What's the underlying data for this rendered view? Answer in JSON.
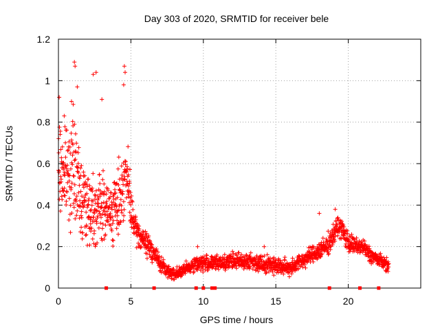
{
  "chart_data": {
    "type": "scatter",
    "title": "Day 303 of 2020, SRMTID for receiver bele",
    "xlabel": "GPS time / hours",
    "ylabel": "SRMTID / TECUs",
    "xlim": [
      0,
      25
    ],
    "ylim": [
      0,
      1.2
    ],
    "x_ticks": [
      0,
      5,
      10,
      15,
      20
    ],
    "x_tick_labels": [
      "0",
      "5",
      "10",
      "15",
      "20"
    ],
    "y_ticks": [
      0,
      0.2,
      0.4,
      0.6,
      0.8,
      1,
      1.2
    ],
    "y_tick_labels": [
      "0",
      "0.2",
      "0.4",
      "0.6",
      "0.8",
      "1",
      "1.2"
    ],
    "grid": true,
    "marker": "+",
    "color": "#ff0000",
    "series": [
      {
        "name": "SRMTID",
        "envelope_x": [
          0,
          0.5,
          1,
          1.5,
          2,
          2.5,
          3,
          3.5,
          4,
          4.3,
          4.6,
          4.8,
          5,
          5.3,
          5.6,
          6,
          6.5,
          7,
          7.5,
          8,
          8.5,
          9,
          9.5,
          10,
          11,
          12,
          13,
          14,
          15,
          15.5,
          16,
          16.5,
          17,
          17.5,
          18,
          18.5,
          19,
          19.3,
          19.6,
          20,
          20.5,
          21,
          21.5,
          22,
          22.5,
          22.8
        ],
        "envelope_mean": [
          0.58,
          0.55,
          0.6,
          0.45,
          0.4,
          0.38,
          0.4,
          0.36,
          0.4,
          0.45,
          0.55,
          0.5,
          0.38,
          0.28,
          0.25,
          0.22,
          0.18,
          0.12,
          0.08,
          0.07,
          0.08,
          0.1,
          0.12,
          0.12,
          0.12,
          0.13,
          0.13,
          0.12,
          0.11,
          0.1,
          0.1,
          0.12,
          0.14,
          0.16,
          0.18,
          0.2,
          0.26,
          0.3,
          0.28,
          0.22,
          0.2,
          0.2,
          0.16,
          0.14,
          0.12,
          0.1
        ],
        "envelope_spread": [
          0.22,
          0.22,
          0.25,
          0.2,
          0.2,
          0.17,
          0.17,
          0.15,
          0.15,
          0.18,
          0.18,
          0.15,
          0.1,
          0.07,
          0.06,
          0.06,
          0.05,
          0.04,
          0.03,
          0.03,
          0.03,
          0.03,
          0.04,
          0.04,
          0.04,
          0.04,
          0.04,
          0.04,
          0.04,
          0.04,
          0.04,
          0.04,
          0.04,
          0.04,
          0.05,
          0.05,
          0.05,
          0.05,
          0.05,
          0.05,
          0.04,
          0.04,
          0.04,
          0.03,
          0.03,
          0.03
        ],
        "peaks": [
          {
            "x": 0.05,
            "y": 0.92
          },
          {
            "x": 1.1,
            "y": 1.09
          },
          {
            "x": 1.15,
            "y": 1.07
          },
          {
            "x": 2.4,
            "y": 1.03
          },
          {
            "x": 2.6,
            "y": 1.04
          },
          {
            "x": 3.0,
            "y": 0.91
          },
          {
            "x": 1.3,
            "y": 0.97
          },
          {
            "x": 4.55,
            "y": 1.07
          },
          {
            "x": 4.6,
            "y": 1.04
          },
          {
            "x": 4.5,
            "y": 0.98
          },
          {
            "x": 0.4,
            "y": 0.83
          },
          {
            "x": 0.9,
            "y": 0.9
          },
          {
            "x": 19.1,
            "y": 0.38
          },
          {
            "x": 18.0,
            "y": 0.36
          },
          {
            "x": 9.6,
            "y": 0.2
          },
          {
            "x": 14.2,
            "y": 0.2
          }
        ]
      }
    ],
    "axis_markers": {
      "y": 0,
      "x": [
        3.3,
        6.6,
        9.5,
        10.0,
        10.6,
        10.8,
        18.7,
        20.8,
        22.1
      ]
    }
  }
}
